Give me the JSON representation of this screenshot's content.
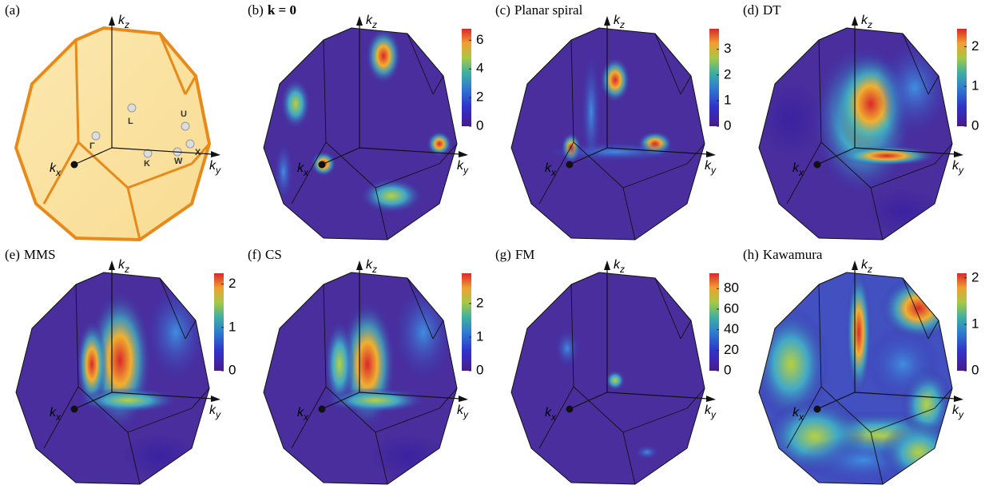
{
  "axis_labels": {
    "kz": {
      "base": "k",
      "sub": "z"
    },
    "kx": {
      "base": "k",
      "sub": "x"
    },
    "ky": {
      "base": "k",
      "sub": "y"
    }
  },
  "panels": [
    {
      "label": "(a)",
      "points": [
        "Γ",
        "L",
        "U",
        "X",
        "W",
        "K"
      ]
    },
    {
      "label": "(b)",
      "title": "k = 0",
      "title_bold": true,
      "colorbar": {
        "lim": [
          0,
          6.8
        ],
        "ticks": [
          0,
          2,
          4,
          6
        ]
      }
    },
    {
      "label": "(c)",
      "title": "Planar spiral",
      "colorbar": {
        "lim": [
          0,
          3.8
        ],
        "ticks": [
          0,
          1,
          2,
          3
        ]
      }
    },
    {
      "label": "(d)",
      "title": "DT",
      "colorbar": {
        "lim": [
          0,
          2.45
        ],
        "ticks": [
          0,
          1,
          2
        ]
      }
    },
    {
      "label": "(e)",
      "title": "MMS",
      "colorbar": {
        "lim": [
          0,
          2.25
        ],
        "ticks": [
          0,
          1,
          2
        ]
      }
    },
    {
      "label": "(f)",
      "title": "CS",
      "colorbar": {
        "lim": [
          0,
          2.9
        ],
        "ticks": [
          0,
          1,
          2
        ]
      }
    },
    {
      "label": "(g)",
      "title": "FM",
      "colorbar": {
        "lim": [
          0,
          95
        ],
        "ticks": [
          0,
          20,
          40,
          60,
          80
        ]
      }
    },
    {
      "label": "(h)",
      "title": "Kawamura",
      "colorbar": {
        "lim": [
          0,
          2.1
        ],
        "ticks": [
          0,
          1,
          2
        ]
      }
    }
  ]
}
